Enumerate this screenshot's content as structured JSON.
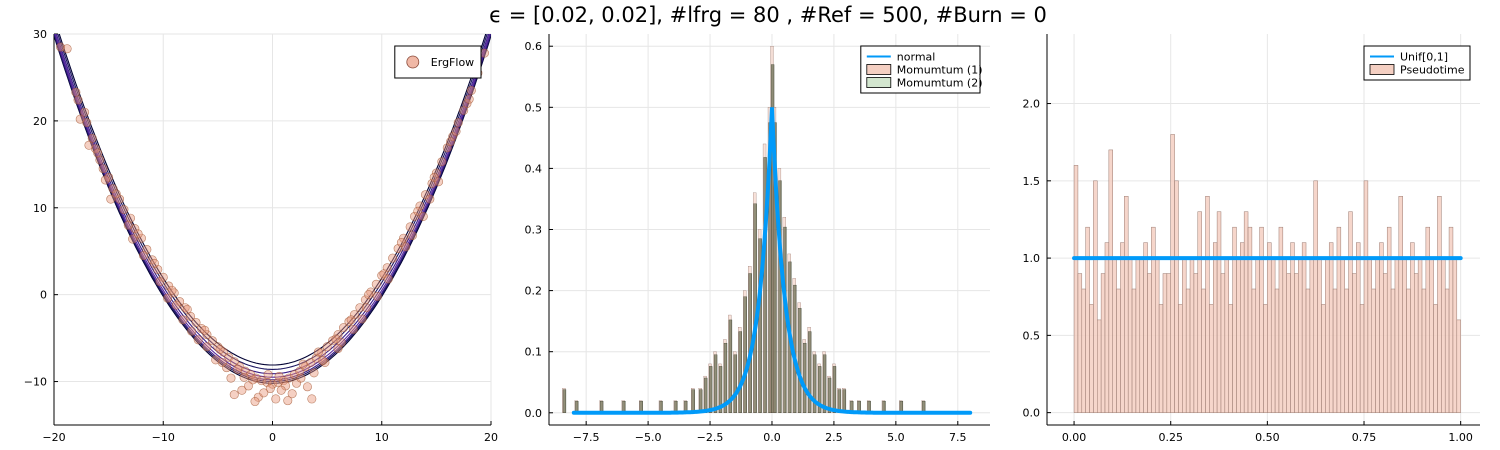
{
  "figure": {
    "title": "ϵ = [0.02, 0.02], #lfrg = 80 , #Ref = 500, #Burn = 0"
  },
  "chart_data": [
    {
      "type": "scatter",
      "xlim": [
        -20,
        20
      ],
      "ylim": [
        -15,
        30
      ],
      "xticks": [
        -20,
        -10,
        0,
        10,
        20
      ],
      "xtick_labels": [
        "−20",
        "−10",
        "0",
        "10",
        "20"
      ],
      "yticks": [
        -10,
        0,
        10,
        20,
        30
      ],
      "ytick_labels": [
        "−10",
        "0",
        "10",
        "20",
        "30"
      ],
      "grid": true,
      "legend": {
        "position": "top-right",
        "entries": [
          {
            "label": "ErgFlow",
            "color": "#f0b8a6"
          }
        ]
      },
      "contours": {
        "centers": [
          -10.2,
          -10.0,
          -9.8,
          -9.5,
          -9.1,
          -8.6,
          -8.1
        ],
        "curvature": 0.1,
        "colors": [
          "#000033",
          "#1a1460",
          "#3b1e8a",
          "#5a2a9e",
          "#3b1e8a",
          "#1a1460",
          "#000033"
        ]
      },
      "points": [
        [
          -18.8,
          28.3
        ],
        [
          -18.0,
          23.3
        ],
        [
          -17.2,
          21.0
        ],
        [
          -17.0,
          19.8
        ],
        [
          -16.5,
          18.0
        ],
        [
          -16.2,
          16.8
        ],
        [
          -15.8,
          15.5
        ],
        [
          -15.5,
          14.5
        ],
        [
          -15.0,
          13.5
        ],
        [
          -14.6,
          12.2
        ],
        [
          -14.0,
          11.0
        ],
        [
          -13.6,
          9.8
        ],
        [
          -13.0,
          8.8
        ],
        [
          -12.6,
          7.6
        ],
        [
          -12.0,
          6.5
        ],
        [
          -11.5,
          5.2
        ],
        [
          -11.0,
          4.0
        ],
        [
          -10.5,
          2.9
        ],
        [
          -10.0,
          2.0
        ],
        [
          -9.5,
          1.0
        ],
        [
          -9.0,
          0.2
        ],
        [
          -8.5,
          -0.8
        ],
        [
          -8.0,
          -1.5
        ],
        [
          -7.5,
          -2.5
        ],
        [
          -7.0,
          -3.2
        ],
        [
          -6.5,
          -3.9
        ],
        [
          -6.0,
          -4.6
        ],
        [
          -5.5,
          -5.3
        ],
        [
          -5.0,
          -6.0
        ],
        [
          -4.5,
          -6.6
        ],
        [
          -4.0,
          -7.2
        ],
        [
          -3.5,
          -7.7
        ],
        [
          -3.0,
          -8.3
        ],
        [
          -2.5,
          -8.8
        ],
        [
          -2.0,
          -9.2
        ],
        [
          -1.5,
          -9.6
        ],
        [
          -1.0,
          -9.9
        ],
        [
          -0.5,
          -10.1
        ],
        [
          0.0,
          -10.3
        ],
        [
          0.5,
          -10.1
        ],
        [
          1.0,
          -9.9
        ],
        [
          1.5,
          -9.6
        ],
        [
          2.0,
          -9.2
        ],
        [
          2.5,
          -8.8
        ],
        [
          3.0,
          -8.3
        ],
        [
          3.5,
          -7.8
        ],
        [
          4.0,
          -7.3
        ],
        [
          4.5,
          -6.7
        ],
        [
          5.0,
          -6.0
        ],
        [
          5.5,
          -5.3
        ],
        [
          6.0,
          -4.6
        ],
        [
          6.5,
          -3.8
        ],
        [
          7.0,
          -3.1
        ],
        [
          7.5,
          -2.3
        ],
        [
          8.0,
          -1.5
        ],
        [
          8.5,
          -0.6
        ],
        [
          9.0,
          0.3
        ],
        [
          9.5,
          1.2
        ],
        [
          10.0,
          2.2
        ],
        [
          10.5,
          3.1
        ],
        [
          11.0,
          4.2
        ],
        [
          11.5,
          5.3
        ],
        [
          12.0,
          6.5
        ],
        [
          12.6,
          7.8
        ],
        [
          13.0,
          9.0
        ],
        [
          13.5,
          10.2
        ],
        [
          14.0,
          11.5
        ],
        [
          14.6,
          12.8
        ],
        [
          15.0,
          14.0
        ],
        [
          15.5,
          15.3
        ],
        [
          16.0,
          16.9
        ],
        [
          16.5,
          18.2
        ],
        [
          17.0,
          19.8
        ],
        [
          17.5,
          21.2
        ],
        [
          18.2,
          23.5
        ],
        [
          18.8,
          25.5
        ],
        [
          19.4,
          27.8
        ],
        [
          -19.4,
          28.5
        ],
        [
          -17.8,
          22.4
        ],
        [
          -16.0,
          16.3
        ],
        [
          -14.3,
          11.6
        ],
        [
          -12.3,
          7.0
        ],
        [
          -10.8,
          3.6
        ],
        [
          -9.2,
          0.5
        ],
        [
          -7.8,
          -1.7
        ],
        [
          -6.2,
          -4.1
        ],
        [
          -4.8,
          -6.3
        ],
        [
          -3.2,
          -8.6
        ],
        [
          -1.8,
          -9.8
        ],
        [
          -0.2,
          -10.8
        ],
        [
          1.2,
          -10.5
        ],
        [
          2.8,
          -8.0
        ],
        [
          4.2,
          -6.6
        ],
        [
          5.8,
          -5.1
        ],
        [
          7.2,
          -2.9
        ],
        [
          8.8,
          0.0
        ],
        [
          10.2,
          2.4
        ],
        [
          11.8,
          6.0
        ],
        [
          13.3,
          9.6
        ],
        [
          14.8,
          13.5
        ],
        [
          16.3,
          17.6
        ],
        [
          17.8,
          22.0
        ],
        [
          -2.8,
          -11.0
        ],
        [
          -1.3,
          -11.8
        ],
        [
          0.3,
          -12.0
        ],
        [
          1.8,
          -11.4
        ],
        [
          3.2,
          -10.6
        ],
        [
          -3.8,
          -9.6
        ],
        [
          -5.2,
          -7.5
        ],
        [
          4.8,
          -7.8
        ],
        [
          6.3,
          -5.5
        ],
        [
          -6.8,
          -5.2
        ],
        [
          -8.2,
          -2.9
        ],
        [
          8.2,
          -2.8
        ],
        [
          -2.2,
          -10.5
        ],
        [
          -0.8,
          -11.3
        ],
        [
          0.8,
          -11.0
        ],
        [
          2.2,
          -10.2
        ],
        [
          -4.2,
          -8.4
        ],
        [
          3.8,
          -9.0
        ],
        [
          -11.8,
          4.5
        ],
        [
          -13.2,
          8.0
        ],
        [
          12.2,
          5.5
        ],
        [
          13.8,
          9.0
        ],
        [
          -15.3,
          13.2
        ],
        [
          15.2,
          13.0
        ],
        [
          -3.5,
          -11.5
        ],
        [
          3.6,
          -12.0
        ],
        [
          -1.6,
          -12.3
        ],
        [
          1.4,
          -12.2
        ],
        [
          -6.0,
          -6.0
        ],
        [
          6.0,
          -6.2
        ],
        [
          -7.4,
          -4.2
        ],
        [
          7.4,
          -4.0
        ],
        [
          -9.6,
          -0.4
        ],
        [
          9.6,
          -0.2
        ],
        [
          -10.3,
          1.5
        ],
        [
          10.6,
          1.8
        ],
        [
          -2.6,
          -9.5
        ],
        [
          2.6,
          -9.6
        ],
        [
          -0.4,
          -9.2
        ],
        [
          0.6,
          -9.4
        ],
        [
          -4.6,
          -7.8
        ],
        [
          4.6,
          -7.6
        ],
        [
          -8.8,
          -1.2
        ],
        [
          8.6,
          -1.5
        ],
        [
          -12.8,
          6.4
        ],
        [
          12.8,
          6.8
        ],
        [
          -14.8,
          11.0
        ],
        [
          14.4,
          11.0
        ],
        [
          -16.8,
          17.2
        ],
        [
          16.8,
          18.8
        ],
        [
          -17.6,
          20.2
        ],
        [
          18.0,
          22.5
        ]
      ]
    },
    {
      "type": "histogram",
      "xlim": [
        -9.0,
        8.8
      ],
      "ylim": [
        -0.02,
        0.62
      ],
      "xticks": [
        -7.5,
        -5.0,
        -2.5,
        0.0,
        2.5,
        5.0,
        7.5
      ],
      "xtick_labels": [
        "−7.5",
        "−5.0",
        "−2.5",
        "0.0",
        "2.5",
        "5.0",
        "7.5"
      ],
      "yticks": [
        0.0,
        0.1,
        0.2,
        0.3,
        0.4,
        0.5,
        0.6
      ],
      "ytick_labels": [
        "0.0",
        "0.1",
        "0.2",
        "0.3",
        "0.4",
        "0.5",
        "0.6"
      ],
      "grid": true,
      "legend": {
        "position": "top-right",
        "entries": [
          {
            "label": "normal",
            "kind": "line",
            "color": "#009af9"
          },
          {
            "label": "Momumtum (1)",
            "kind": "patch",
            "color": "#f4cfc2"
          },
          {
            "label": "Momumtum (2)",
            "kind": "patch",
            "color": "#d3e6cf"
          }
        ]
      },
      "density_curve": {
        "name": "normal",
        "center": 0.0,
        "scale": 0.5,
        "peak": 0.5,
        "x_range": [
          -8.0,
          8.0
        ]
      },
      "hist_bin_width": 0.12,
      "hist_bins": [
        [
          -8.4,
          0.04
        ],
        [
          -7.9,
          0.02
        ],
        [
          -6.9,
          0.02
        ],
        [
          -6.0,
          0.02
        ],
        [
          -5.3,
          0.02
        ],
        [
          -4.5,
          0.02
        ],
        [
          -3.9,
          0.02
        ],
        [
          -3.5,
          0.02
        ],
        [
          -3.2,
          0.04
        ],
        [
          -2.9,
          0.04
        ],
        [
          -2.7,
          0.06
        ],
        [
          -2.5,
          0.08
        ],
        [
          -2.3,
          0.1
        ],
        [
          -2.1,
          0.08
        ],
        [
          -1.9,
          0.12
        ],
        [
          -1.7,
          0.16
        ],
        [
          -1.5,
          0.1
        ],
        [
          -1.3,
          0.14
        ],
        [
          -1.1,
          0.2
        ],
        [
          -0.9,
          0.24
        ],
        [
          -0.7,
          0.36
        ],
        [
          -0.5,
          0.3
        ],
        [
          -0.3,
          0.44
        ],
        [
          -0.1,
          0.5
        ],
        [
          0.0,
          0.6
        ],
        [
          0.1,
          0.5
        ],
        [
          0.3,
          0.4
        ],
        [
          0.5,
          0.32
        ],
        [
          0.7,
          0.26
        ],
        [
          0.9,
          0.22
        ],
        [
          1.1,
          0.18
        ],
        [
          1.3,
          0.12
        ],
        [
          1.5,
          0.14
        ],
        [
          1.7,
          0.1
        ],
        [
          1.9,
          0.08
        ],
        [
          2.1,
          0.1
        ],
        [
          2.3,
          0.06
        ],
        [
          2.5,
          0.08
        ],
        [
          2.7,
          0.04
        ],
        [
          2.9,
          0.04
        ],
        [
          3.2,
          0.02
        ],
        [
          3.5,
          0.02
        ],
        [
          3.9,
          0.02
        ],
        [
          4.5,
          0.02
        ],
        [
          5.2,
          0.02
        ],
        [
          6.1,
          0.02
        ]
      ]
    },
    {
      "type": "histogram",
      "xlim": [
        -0.07,
        1.05
      ],
      "ylim": [
        -0.08,
        2.45
      ],
      "xticks": [
        0.0,
        0.25,
        0.5,
        0.75,
        1.0
      ],
      "xtick_labels": [
        "0.00",
        "0.25",
        "0.50",
        "0.75",
        "1.00"
      ],
      "yticks": [
        0.0,
        0.5,
        1.0,
        1.5,
        2.0
      ],
      "ytick_labels": [
        "0.0",
        "0.5",
        "1.0",
        "1.5",
        "2.0"
      ],
      "grid": true,
      "legend": {
        "position": "top-right",
        "entries": [
          {
            "label": "Unif[0,1]",
            "kind": "line",
            "color": "#009af9"
          },
          {
            "label": "Pseudotime",
            "kind": "patch",
            "color": "#f4cfc2"
          }
        ]
      },
      "reference_line": {
        "name": "Unif[0,1]",
        "y": 1.0,
        "x_range": [
          0.0,
          1.0
        ]
      },
      "hist_bin_width": 0.01,
      "hist_values": [
        1.6,
        0.9,
        0.8,
        1.2,
        0.7,
        1.5,
        0.6,
        0.9,
        1.1,
        1.7,
        1.0,
        0.8,
        1.1,
        1.4,
        1.0,
        0.8,
        1.0,
        1.0,
        1.1,
        0.9,
        1.2,
        1.0,
        0.7,
        0.9,
        0.9,
        1.8,
        1.5,
        0.7,
        1.0,
        0.8,
        1.0,
        0.9,
        1.3,
        0.8,
        1.4,
        0.7,
        1.1,
        1.3,
        0.9,
        1.0,
        0.7,
        1.2,
        1.0,
        1.1,
        1.3,
        1.2,
        0.8,
        1.0,
        1.2,
        0.7,
        1.1,
        1.0,
        0.8,
        1.2,
        1.0,
        0.9,
        1.1,
        0.9,
        1.0,
        1.1,
        0.8,
        1.0,
        1.5,
        1.0,
        0.7,
        1.0,
        1.1,
        0.8,
        1.2,
        1.0,
        0.8,
        1.3,
        0.9,
        1.1,
        0.7,
        1.5,
        1.0,
        0.8,
        1.0,
        1.1,
        0.9,
        1.2,
        0.8,
        1.0,
        1.4,
        1.0,
        0.8,
        1.1,
        0.9,
        1.0,
        0.8,
        1.2,
        1.0,
        0.7,
        1.4,
        1.0,
        0.8,
        1.2,
        1.0,
        0.6
      ]
    }
  ]
}
